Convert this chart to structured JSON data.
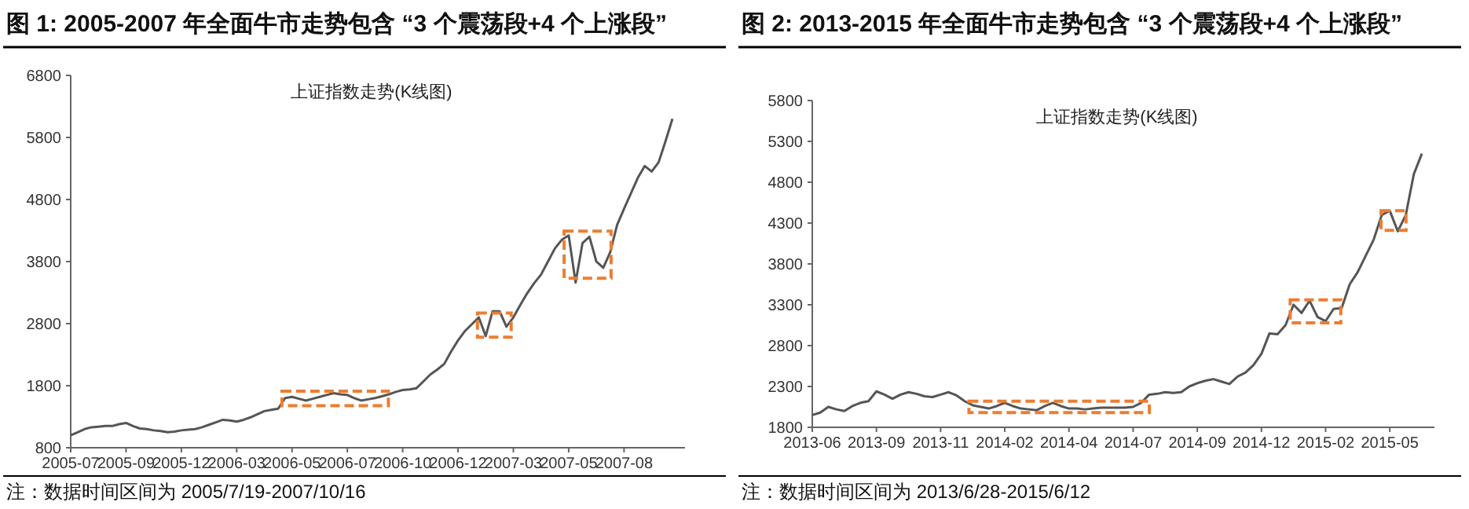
{
  "chart_data": [
    {
      "type": "line",
      "title": "图 1: 2005-2007 年全面牛市走势包含 “3 个震荡段+4 个上涨段”",
      "subtitle": "上证指数走势(K线图)",
      "annotations": [
        "注：数据时间区间为 2005/7/19-2007/10/16"
      ],
      "categories": [
        "2005-07",
        null,
        null,
        null,
        null,
        null,
        null,
        null,
        "2005-09",
        null,
        null,
        null,
        null,
        null,
        null,
        null,
        "2005-12",
        null,
        null,
        null,
        null,
        null,
        null,
        null,
        "2006-03",
        null,
        null,
        null,
        null,
        null,
        null,
        null,
        "2006-05",
        null,
        null,
        null,
        null,
        null,
        null,
        null,
        "2006-07",
        null,
        null,
        null,
        null,
        null,
        null,
        null,
        "2006-10",
        null,
        null,
        null,
        null,
        null,
        null,
        null,
        "2006-12",
        null,
        null,
        null,
        null,
        null,
        null,
        null,
        "2007-03",
        null,
        null,
        null,
        null,
        null,
        null,
        null,
        "2007-05",
        null,
        null,
        null,
        null,
        null,
        null,
        null,
        "2007-08",
        null,
        null,
        null,
        null,
        null,
        null,
        null
      ],
      "series": [
        {
          "color": "#555555",
          "values": [
            1000,
            1050,
            1100,
            1130,
            1140,
            1150,
            1150,
            1180,
            1200,
            1150,
            1110,
            1100,
            1080,
            1070,
            1050,
            1060,
            1080,
            1090,
            1100,
            1130,
            1170,
            1210,
            1250,
            1240,
            1220,
            1250,
            1290,
            1340,
            1390,
            1410,
            1430,
            1600,
            1620,
            1590,
            1560,
            1590,
            1620,
            1650,
            1680,
            1660,
            1650,
            1600,
            1560,
            1580,
            1600,
            1630,
            1660,
            1700,
            1730,
            1740,
            1760,
            1870,
            1980,
            2060,
            2150,
            2350,
            2530,
            2680,
            2790,
            2900,
            2600,
            3000,
            3000,
            2750,
            2900,
            3100,
            3290,
            3450,
            3590,
            3800,
            4010,
            4150,
            4220,
            3460,
            4100,
            4200,
            3800,
            3700,
            3950,
            4390,
            4650,
            4900,
            5150,
            5340,
            5250,
            5400,
            5740,
            6100
          ]
        }
      ],
      "ylim": [
        800,
        6800
      ],
      "yticks": [
        800,
        1800,
        2800,
        3800,
        4800,
        5800,
        6800
      ],
      "grid": false,
      "line_style": "solid"
    },
    {
      "type": "line",
      "title": "图 2: 2013-2015 年全面牛市走势包含 “3 个震荡段+4 个上涨段”",
      "subtitle": "上证指数走势(K线图)",
      "annotations": [
        "注：数据时间区间为 2013/6/28-2015/6/12"
      ],
      "categories": [
        "2013-06",
        null,
        null,
        null,
        null,
        null,
        null,
        null,
        "2013-09",
        null,
        null,
        null,
        null,
        null,
        null,
        null,
        "2013-11",
        null,
        null,
        null,
        null,
        null,
        null,
        null,
        "2014-02",
        null,
        null,
        null,
        null,
        null,
        null,
        null,
        "2014-04",
        null,
        null,
        null,
        null,
        null,
        null,
        null,
        "2014-07",
        null,
        null,
        null,
        null,
        null,
        null,
        null,
        "2014-09",
        null,
        null,
        null,
        null,
        null,
        null,
        null,
        "2014-12",
        null,
        null,
        null,
        null,
        null,
        null,
        null,
        "2015-02",
        null,
        null,
        null,
        null,
        null,
        null,
        null,
        "2015-05",
        null,
        null,
        null,
        null
      ],
      "series": [
        {
          "color": "#555555",
          "values": [
            1950,
            1980,
            2050,
            2020,
            2000,
            2060,
            2100,
            2120,
            2240,
            2200,
            2150,
            2200,
            2230,
            2210,
            2180,
            2170,
            2200,
            2230,
            2190,
            2120,
            2070,
            2050,
            2030,
            2060,
            2100,
            2060,
            2030,
            2020,
            2010,
            2060,
            2100,
            2060,
            2030,
            2030,
            2020,
            2030,
            2040,
            2040,
            2040,
            2040,
            2050,
            2100,
            2200,
            2210,
            2230,
            2220,
            2230,
            2300,
            2340,
            2370,
            2390,
            2360,
            2330,
            2420,
            2470,
            2560,
            2700,
            2950,
            2940,
            3050,
            3300,
            3200,
            3350,
            3150,
            3100,
            3250,
            3260,
            3550,
            3700,
            3900,
            4100,
            4400,
            4450,
            4200,
            4400,
            4900,
            5150
          ]
        }
      ],
      "ylim": [
        1800,
        5800
      ],
      "yticks": [
        1800,
        2300,
        2800,
        3300,
        3800,
        4300,
        4800,
        5300,
        5800
      ],
      "grid": false,
      "line_style": "solid"
    }
  ]
}
